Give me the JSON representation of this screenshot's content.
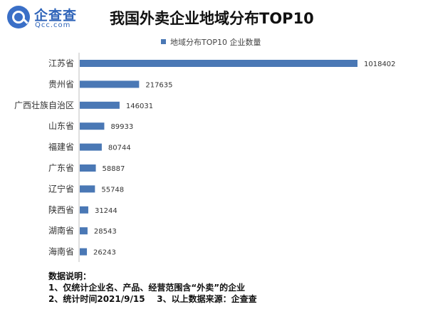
{
  "logo": {
    "name_cn": "企查查",
    "name_en": "Qcc.com"
  },
  "chart_data": {
    "type": "bar",
    "orientation": "horizontal",
    "title": "我国外卖企业地域分布TOP10",
    "legend_position": "top",
    "grid": false,
    "colors": {
      "bar": "#4a78b5"
    },
    "categories": [
      "江苏省",
      "贵州省",
      "广西壮族自治区",
      "山东省",
      "福建省",
      "广东省",
      "辽宁省",
      "陕西省",
      "湖南省",
      "海南省"
    ],
    "series": [
      {
        "name": "地域分布TOP10 企业数量",
        "values": [
          1018402,
          217635,
          146031,
          89933,
          80744,
          58887,
          55748,
          31244,
          28543,
          26243
        ]
      }
    ],
    "xlim": [
      0,
      1018402
    ]
  },
  "notes": {
    "heading": "数据说明：",
    "line1": "1、仅统计企业名、产品、经营范围含“外卖”的企业",
    "line2": "2、统计时间2021/9/15    3、以上数据来源：企查查"
  }
}
